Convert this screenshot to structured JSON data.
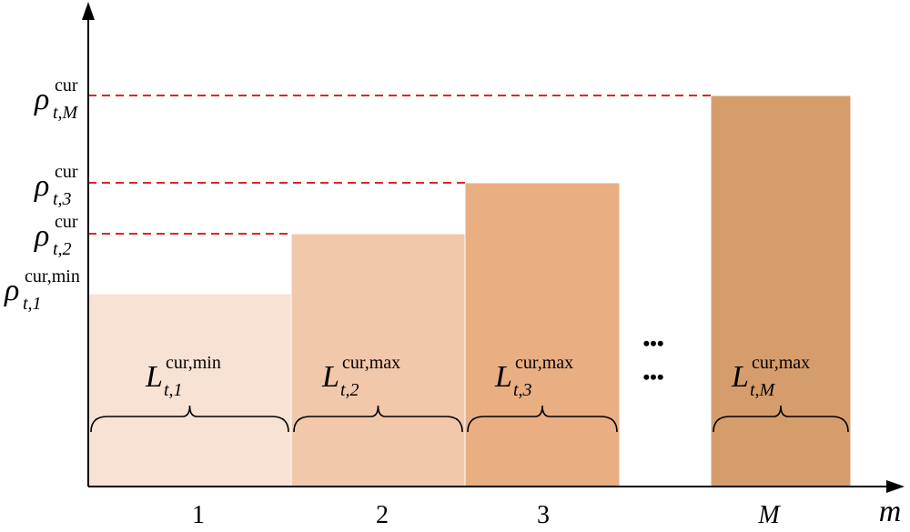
{
  "y_labels": [
    {
      "symbol": "ρ",
      "sub": "t,M",
      "sup": "cur"
    },
    {
      "symbol": "ρ",
      "sub": "t,3",
      "sup": "cur"
    },
    {
      "symbol": "ρ",
      "sub": "t,2",
      "sup": "cur"
    },
    {
      "symbol": "ρ",
      "sub": "t,1",
      "sup": "cur,min"
    }
  ],
  "blocks": [
    {
      "label": "1",
      "color": "#f8e2d4",
      "length_label": {
        "symbol": "L",
        "sub": "t,1",
        "sup": "cur,min"
      }
    },
    {
      "label": "2",
      "color": "#f2c8aa",
      "length_label": {
        "symbol": "L",
        "sub": "t,2",
        "sup": "cur,max"
      }
    },
    {
      "label": "3",
      "color": "#eaae83",
      "length_label": {
        "symbol": "L",
        "sub": "t,3",
        "sup": "cur,max"
      }
    },
    {
      "label": "M",
      "color": "#d69d6c",
      "length_label": {
        "symbol": "L",
        "sub": "t,M",
        "sup": "cur,max"
      }
    }
  ],
  "ellipsis": "•••",
  "x_axis_label": "m"
}
